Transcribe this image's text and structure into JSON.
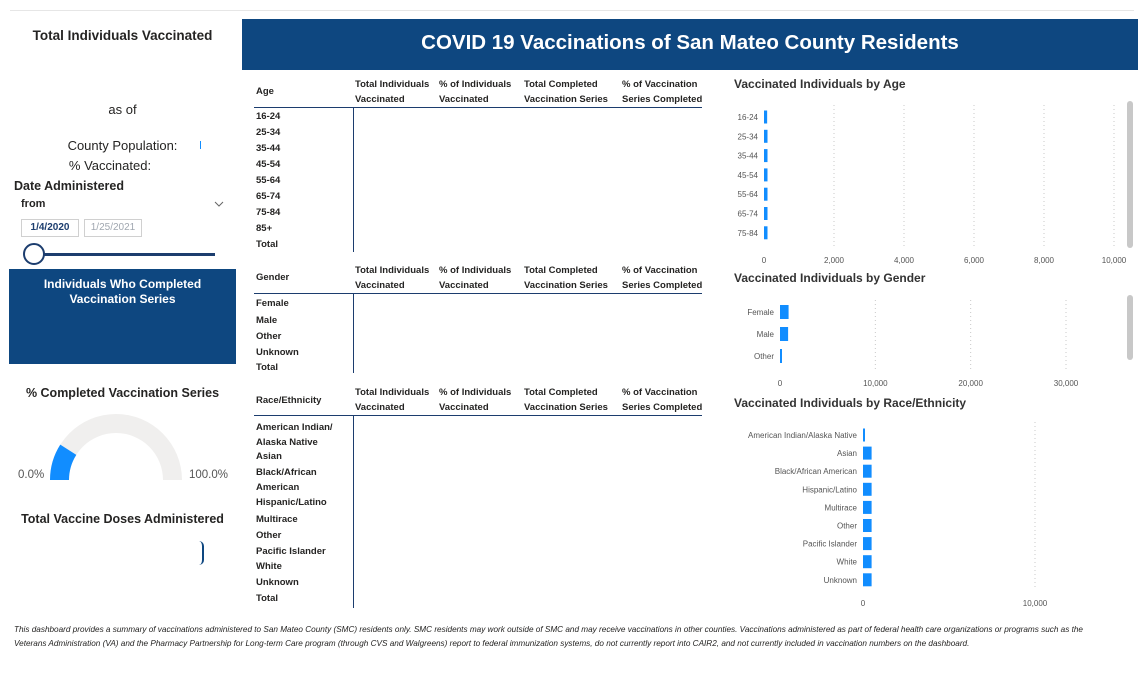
{
  "left": {
    "total_vaccinated_title": "Total Individuals Vaccinated",
    "as_of": "as of",
    "county_population_label": "County Population:",
    "percent_vaccinated_label": "% Vaccinated:",
    "date_slicer": {
      "title": "Date Administered",
      "mode": "from",
      "start_date": "1/4/2020",
      "end_date": "1/25/2021"
    },
    "completed_card_title": "Individuals Who Completed Vaccination Series",
    "percent_completed_title": "% Completed Vaccination Series",
    "gauge": {
      "min_label": "0.0%",
      "max_label": "100.0%",
      "fill_fraction": 0.18
    },
    "total_doses_title": "Total Vaccine Doses Administered"
  },
  "header": {
    "title": "COVID 19 Vaccinations of San Mateo County Residents"
  },
  "columns": {
    "total_individuals": "Total Individuals Vaccinated",
    "pct_individuals": "% of Individuals Vaccinated",
    "total_completed": "Total Completed Vaccination Series",
    "pct_completed": "% of Vaccination Series Completed"
  },
  "tables": {
    "age": {
      "header": "Age",
      "rows": [
        "16-24",
        "25-34",
        "35-44",
        "45-54",
        "55-64",
        "65-74",
        "75-84",
        "85+",
        "Total"
      ]
    },
    "gender": {
      "header": "Gender",
      "rows": [
        "Female",
        "Male",
        "Other",
        "Unknown",
        "Total"
      ]
    },
    "race": {
      "header": "Race/Ethnicity",
      "rows": [
        "American Indian/ Alaska Native",
        "Asian",
        "Black/African American",
        "Hispanic/Latino",
        "Multirace",
        "Other",
        "Pacific Islander",
        "White",
        "Unknown",
        "Total"
      ]
    }
  },
  "chart_data": [
    {
      "type": "bar",
      "orientation": "horizontal",
      "title": "Vaccinated Individuals by Age",
      "categories": [
        "16-24",
        "25-34",
        "35-44",
        "45-54",
        "55-64",
        "65-74",
        "75-84"
      ],
      "values": [
        90,
        100,
        100,
        100,
        100,
        100,
        100
      ],
      "xlim": [
        0,
        10000
      ],
      "x_ticks": [
        "0",
        "2,000",
        "4,000",
        "6,000",
        "8,000",
        "10,000"
      ],
      "color": "#118dff"
    },
    {
      "type": "bar",
      "orientation": "horizontal",
      "title": "Vaccinated Individuals by Gender",
      "categories": [
        "Female",
        "Male",
        "Other"
      ],
      "values": [
        900,
        850,
        150
      ],
      "xlim": [
        0,
        30000
      ],
      "x_ticks": [
        "0",
        "10,000",
        "20,000",
        "30,000"
      ],
      "color": "#118dff"
    },
    {
      "type": "bar",
      "orientation": "horizontal",
      "title": "Vaccinated Individuals by Race/Ethnicity",
      "categories": [
        "American Indian/Alaska Native",
        "Asian",
        "Black/African American",
        "Hispanic/Latino",
        "Multirace",
        "Other",
        "Pacific Islander",
        "White",
        "Unknown"
      ],
      "values": [
        100,
        500,
        500,
        500,
        500,
        500,
        500,
        500,
        500
      ],
      "xlim": [
        0,
        10000
      ],
      "x_ticks": [
        "0",
        "10,000"
      ],
      "color": "#118dff"
    }
  ],
  "footer": {
    "line1": "This dashboard provides a summary of vaccinations administered to San Mateo County (SMC) residents only.  SMC residents may work outside of SMC and may receive vaccinations in other counties. Vaccinations administered as part of federal health care organizations or programs such as the",
    "line2": "Veterans Administration (VA) and the Pharmacy Partnership for Long-term Care program (through CVS and Walgreens) report to federal immunization systems, do not currently report into CAIR2, and not currently included in vaccination numbers on the dashboard."
  },
  "colors": {
    "navy": "#0e4780",
    "bar": "#118dff",
    "gauge_bg": "#f0efee"
  }
}
